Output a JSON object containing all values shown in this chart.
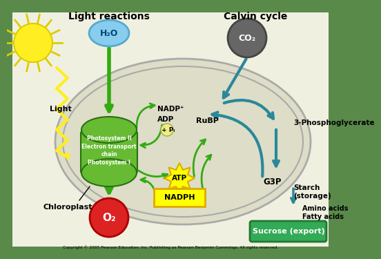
{
  "bg_color": "#5a8a4a",
  "chloroplast_fill": "#ddddc8",
  "chloroplast_edge": "#aaaaaa",
  "photosystem_fill": "#66bb33",
  "photosystem_edge": "#2a7010",
  "sun_color": "#ffee22",
  "sun_edge": "#ddcc00",
  "h2o_fill": "#88ccee",
  "h2o_edge": "#55aacc",
  "co2_fill": "#666666",
  "co2_edge": "#444444",
  "o2_fill": "#dd2222",
  "o2_edge": "#aa0000",
  "atp_fill": "#ffff00",
  "atp_edge": "#ddaa00",
  "nadph_fill": "#ffff00",
  "nadph_edge": "#ddaa00",
  "sucrose_fill": "#33aa55",
  "sucrose_edge": "#227733",
  "pi_fill": "#eeee88",
  "pi_edge": "#aaaa44",
  "calvin_color": "#2a8899",
  "green_arrow_color": "#33aa11",
  "light_zz_color": "#ffee22",
  "white_bg": "#f5f5ee",
  "title_left": "Light reactions",
  "title_right": "Calvin cycle",
  "label_light": "Light",
  "label_chloroplast": "Chloroplast",
  "label_photosystem": "Photosystem II\nElectron transport\nchain\nPhotosystem I",
  "label_h2o": "H₂O",
  "label_co2": "CO₂",
  "label_o2": "O₂",
  "label_atp": "ATP",
  "label_nadph": "NADPH",
  "label_nadp": "NADP⁺",
  "label_adp": "ADP",
  "label_pi": "+ Pᵢ",
  "label_rubp": "RuBP",
  "label_3pg": "3-Phosphoglycerate",
  "label_g3p": "G3P",
  "label_starch": "Starch\n(storage)",
  "label_amino": "Amino acids\nFatty acids",
  "label_sucrose": "Sucrose (export)",
  "copyright": "Copyright © 2005 Pearson Education, Inc. Publishing as Pearson Benjamin Cummings. All rights reserved."
}
